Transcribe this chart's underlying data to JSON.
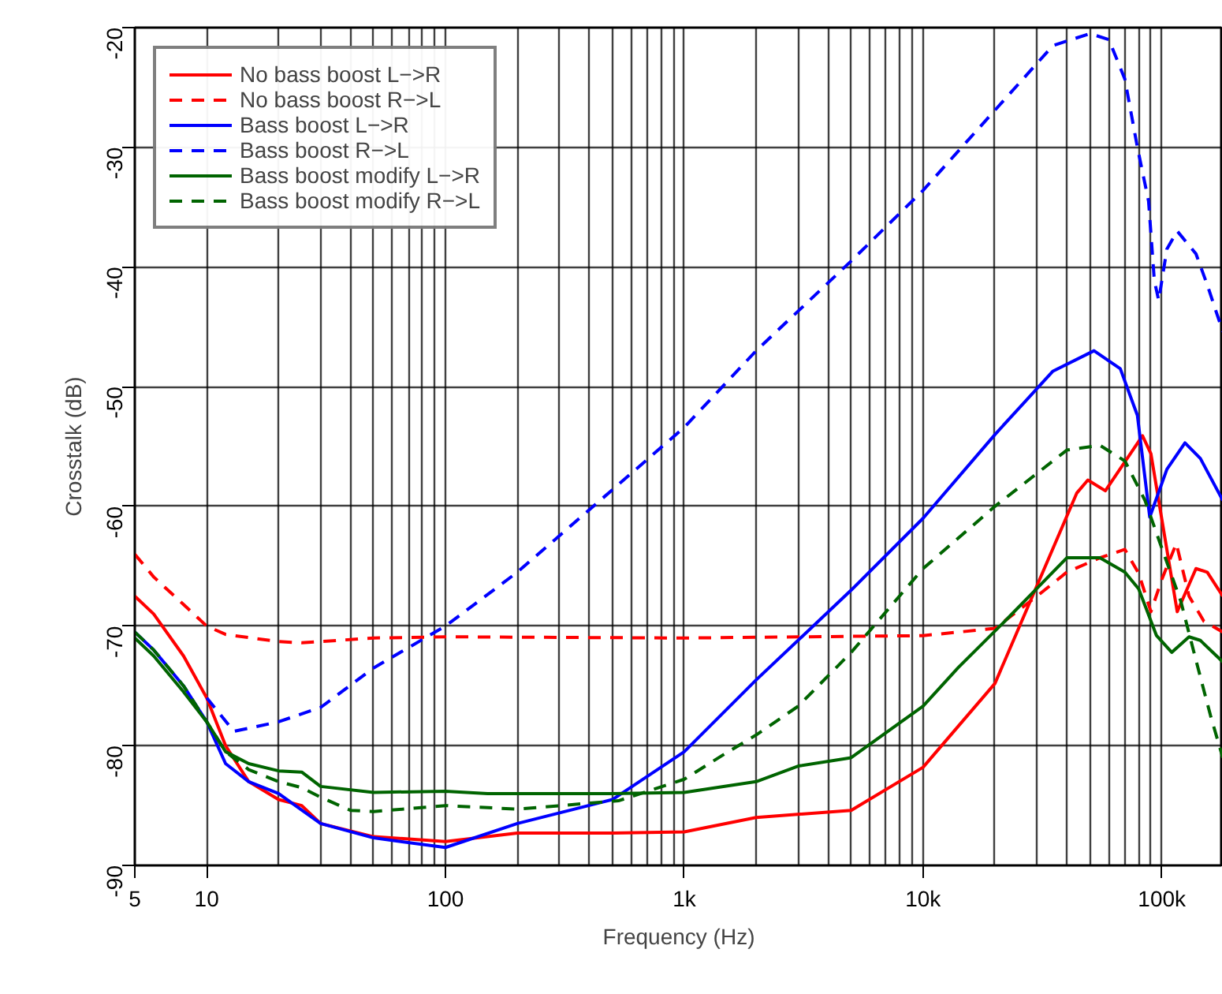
{
  "chart_data": {
    "type": "line",
    "xlabel": "Frequency (Hz)",
    "ylabel": "Crosstalk (dB)",
    "log": "x",
    "xlim": [
      5,
      180000
    ],
    "ylim": [
      -90,
      -20
    ],
    "xticks": [
      5,
      10,
      {
        "value": 20,
        "label": null
      },
      {
        "value": 30,
        "label": null
      },
      {
        "value": 40,
        "label": null
      },
      {
        "value": 50,
        "label": null
      },
      {
        "value": 60,
        "label": null
      },
      {
        "value": 70,
        "label": null
      },
      {
        "value": 80,
        "label": null
      },
      {
        "value": 90,
        "label": null
      },
      100,
      {
        "value": 200,
        "label": null
      },
      {
        "value": 300,
        "label": null
      },
      {
        "value": 400,
        "label": null
      },
      {
        "value": 500,
        "label": null
      },
      {
        "value": 600,
        "label": null
      },
      {
        "value": 700,
        "label": null
      },
      {
        "value": 800,
        "label": null
      },
      {
        "value": 900,
        "label": null
      },
      {
        "value": 1000,
        "label": "1k"
      },
      {
        "value": 2000,
        "label": null
      },
      {
        "value": 3000,
        "label": null
      },
      {
        "value": 4000,
        "label": null
      },
      {
        "value": 5000,
        "label": null
      },
      {
        "value": 6000,
        "label": null
      },
      {
        "value": 7000,
        "label": null
      },
      {
        "value": 8000,
        "label": null
      },
      {
        "value": 9000,
        "label": null
      },
      {
        "value": 10000,
        "label": "10k"
      },
      {
        "value": 20000,
        "label": null
      },
      {
        "value": 30000,
        "label": null
      },
      {
        "value": 40000,
        "label": null
      },
      {
        "value": 50000,
        "label": null
      },
      {
        "value": 60000,
        "label": null
      },
      {
        "value": 70000,
        "label": null
      },
      {
        "value": 80000,
        "label": null
      },
      {
        "value": 90000,
        "label": null
      },
      {
        "value": 100000,
        "label": "100k"
      }
    ],
    "yticks": [
      -90,
      -80,
      -70,
      -60,
      -50,
      -40,
      -30,
      -20
    ],
    "grid": true,
    "legend": "top left",
    "marker": "none",
    "series": [
      {
        "name": "No bass boost L−>R",
        "color": "#ff0000",
        "line_style": "solid",
        "x": [
          5,
          6,
          8,
          10,
          12,
          15,
          20,
          25,
          30,
          50,
          100,
          200,
          500,
          1000,
          2000,
          5000,
          10000,
          20000,
          44000,
          49000,
          58000,
          83000,
          90000,
          116000,
          139000,
          155000,
          180000
        ],
        "values": [
          -67.5,
          -69,
          -72.5,
          -76,
          -80,
          -83,
          -84.5,
          -85,
          -86.5,
          -87.6,
          -88,
          -87.3,
          -87.3,
          -87.2,
          -86,
          -85.4,
          -81.8,
          -74.8,
          -58.9,
          -57.8,
          -58.7,
          -54.1,
          -55.6,
          -68.8,
          -65.2,
          -65.5,
          -67.5
        ]
      },
      {
        "name": "No bass boost R−>L",
        "color": "#ff0000",
        "line_style": "dashed",
        "x": [
          5,
          6,
          8,
          10,
          12,
          20,
          25,
          50,
          100,
          1000,
          10000,
          20000,
          30000,
          40000,
          55000,
          70000,
          80000,
          90000,
          100000,
          115000,
          130000,
          150000,
          180000
        ],
        "values": [
          -64,
          -65.9,
          -68.2,
          -70,
          -70.7,
          -71.3,
          -71.4,
          -71,
          -70.9,
          -71,
          -70.8,
          -70.2,
          -67.5,
          -65.5,
          -64.3,
          -63.6,
          -65.6,
          -68.8,
          -66.1,
          -63.1,
          -67.5,
          -69.6,
          -70.5
        ]
      },
      {
        "name": "Bass boost L−>R",
        "color": "#0000ff",
        "line_style": "solid",
        "x": [
          5,
          6,
          8,
          10,
          12,
          15,
          20,
          30,
          50,
          100,
          200,
          500,
          1000,
          2000,
          5000,
          10000,
          20000,
          35000,
          52000,
          67000,
          79000,
          89000,
          105000,
          125000,
          145000,
          180000
        ],
        "values": [
          -70.5,
          -72,
          -75,
          -78,
          -81.5,
          -83,
          -84,
          -86.5,
          -87.7,
          -88.5,
          -86.5,
          -84.5,
          -80.5,
          -74.5,
          -67,
          -61,
          -54,
          -48.7,
          -47,
          -48.5,
          -52.4,
          -60.9,
          -56.9,
          -54.7,
          -56,
          -59.5
        ]
      },
      {
        "name": "Bass boost R−>L",
        "color": "#0000ff",
        "line_style": "dashed",
        "x": [
          10,
          13,
          20,
          30,
          50,
          100,
          200,
          1000,
          2000,
          5000,
          10000,
          19000,
          35000,
          50000,
          60000,
          70000,
          79000,
          88000,
          93000,
          97000,
          105000,
          116000,
          139000,
          155000,
          180000
        ],
        "values": [
          -76,
          -78.8,
          -78,
          -76.8,
          -73.5,
          -70,
          -65.5,
          -53.4,
          -47,
          -39.5,
          -33.6,
          -27.4,
          -21.5,
          -20.5,
          -21,
          -24.3,
          -30,
          -34.5,
          -41.1,
          -42.8,
          -38.5,
          -37,
          -38.9,
          -41.5,
          -45.4
        ]
      },
      {
        "name": "Bass boost modify L−>R",
        "color": "#006400",
        "line_style": "solid",
        "x": [
          5,
          6,
          8,
          10,
          12,
          15,
          20,
          25,
          30,
          50,
          100,
          150,
          500,
          1000,
          2000,
          3000,
          5000,
          10000,
          14000,
          22000,
          40000,
          55000,
          70000,
          80000,
          95000,
          110000,
          130000,
          145000,
          180000
        ],
        "values": [
          -71,
          -72.5,
          -75.5,
          -78,
          -80.5,
          -81.5,
          -82.1,
          -82.2,
          -83.4,
          -83.9,
          -83.8,
          -84,
          -84,
          -83.9,
          -83,
          -81.7,
          -81,
          -76.7,
          -73.5,
          -69.6,
          -64.3,
          -64.3,
          -65.5,
          -66.9,
          -70.8,
          -72.2,
          -70.9,
          -71.2,
          -73
        ]
      },
      {
        "name": "Bass boost modify R−>L",
        "color": "#006400",
        "line_style": "dashed",
        "x": [
          5,
          6,
          8,
          10,
          12,
          15,
          20,
          25,
          30,
          40,
          50,
          100,
          200,
          530,
          1000,
          1500,
          2000,
          3000,
          5000,
          10000,
          20000,
          40000,
          55000,
          70000,
          85000,
          100000,
          120000,
          140000,
          160000,
          180000
        ],
        "values": [
          -70.5,
          -72,
          -75,
          -78,
          -80.5,
          -82,
          -83,
          -83.5,
          -84.3,
          -85.4,
          -85.5,
          -85,
          -85.3,
          -84.6,
          -82.8,
          -80.6,
          -79.1,
          -76.7,
          -72.2,
          -65.2,
          -60,
          -55.3,
          -54.9,
          -56.2,
          -59.5,
          -63.5,
          -67.9,
          -73.1,
          -77.5,
          -81
        ]
      }
    ]
  }
}
